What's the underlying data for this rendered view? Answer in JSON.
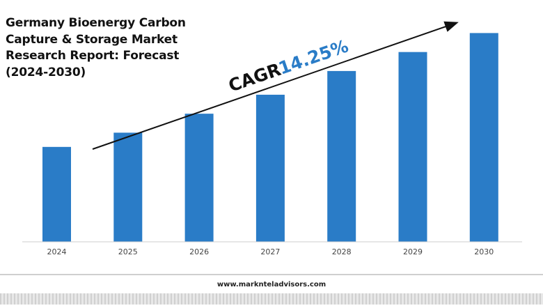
{
  "title": "Germany Bioenergy Carbon Capture & Storage Market Research Report: Forecast (2024-2030)",
  "cagr": {
    "label": "CAGR",
    "value": "14.25%"
  },
  "footer": {
    "url": "www.marknteladvisors.com"
  },
  "colors": {
    "bar": "#2a7cc7",
    "cagr_value": "#2a7cc7",
    "text": "#111111",
    "axis": "#cccccc"
  },
  "chart_data": {
    "type": "bar",
    "title": "Germany Bioenergy Carbon Capture & Storage Market Research Report: Forecast (2024-2030)",
    "categories": [
      "2024",
      "2025",
      "2026",
      "2027",
      "2028",
      "2029",
      "2030"
    ],
    "values": [
      1.0,
      1.15,
      1.35,
      1.55,
      1.8,
      2.0,
      2.2
    ],
    "ylim": [
      0,
      2.35
    ],
    "xlabel": "",
    "ylabel": "",
    "grid": false,
    "legend": "none",
    "annotation": "CAGR 14.25%"
  }
}
